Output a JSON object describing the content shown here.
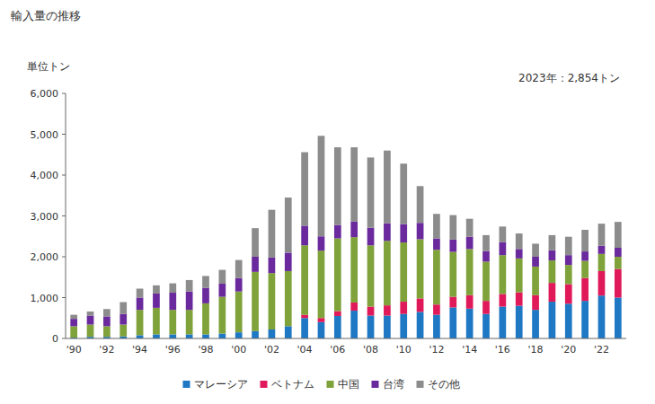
{
  "chart_data": {
    "type": "bar",
    "title": "輸入量の推移",
    "y_label": "単位トン",
    "annotation": "2023年：2,854トン",
    "stacked": true,
    "grid": false,
    "legend": "bottom",
    "categories": [
      "'90",
      null,
      "'92",
      null,
      "'94",
      null,
      "'96",
      null,
      "'98",
      null,
      "'00",
      null,
      "'02",
      null,
      "'04",
      null,
      "'06",
      null,
      "'08",
      null,
      "'10",
      null,
      "'12",
      null,
      "'14",
      null,
      "'16",
      null,
      "'18",
      null,
      "'20",
      null,
      "'22",
      null
    ],
    "ylim": [
      0,
      6000
    ],
    "yticks": [
      0,
      {
        "value": 1000,
        "label": "1,000"
      },
      {
        "value": 2000,
        "label": "2,000"
      },
      {
        "value": 3000,
        "label": "3,000"
      },
      {
        "value": 4000,
        "label": "4,000"
      },
      {
        "value": 5000,
        "label": "5,000"
      },
      {
        "value": 6000,
        "label": "6,000"
      }
    ],
    "series": [
      {
        "name": "マレーシア",
        "color": "#1f78c4",
        "values": [
          20,
          40,
          40,
          50,
          80,
          100,
          100,
          100,
          100,
          120,
          150,
          180,
          220,
          300,
          500,
          400,
          550,
          680,
          560,
          560,
          600,
          650,
          580,
          760,
          730,
          600,
          780,
          800,
          700,
          900,
          850,
          920,
          1050,
          1000
        ]
      },
      {
        "name": "ベトナム",
        "color": "#e0195a",
        "values": [
          0,
          0,
          0,
          0,
          0,
          0,
          0,
          0,
          0,
          0,
          0,
          0,
          0,
          0,
          80,
          100,
          120,
          200,
          220,
          250,
          300,
          330,
          250,
          260,
          330,
          320,
          310,
          330,
          360,
          460,
          480,
          560,
          600,
          700
        ]
      },
      {
        "name": "中国",
        "color": "#7fa23a",
        "values": [
          280,
          300,
          260,
          290,
          620,
          650,
          600,
          600,
          760,
          900,
          1000,
          1450,
          1380,
          1350,
          1700,
          1650,
          1780,
          1600,
          1500,
          1580,
          1450,
          1450,
          1340,
          1100,
          1130,
          960,
          950,
          830,
          700,
          550,
          470,
          420,
          420,
          300
        ]
      },
      {
        "name": "台湾",
        "color": "#6a2a9e",
        "values": [
          180,
          220,
          240,
          260,
          300,
          350,
          420,
          450,
          380,
          320,
          330,
          370,
          380,
          450,
          480,
          350,
          330,
          380,
          430,
          430,
          450,
          400,
          280,
          300,
          300,
          260,
          320,
          230,
          240,
          250,
          240,
          230,
          200,
          220
        ]
      },
      {
        "name": "その他",
        "color": "#8c8c8c",
        "values": [
          100,
          100,
          180,
          290,
          220,
          200,
          230,
          280,
          290,
          340,
          440,
          700,
          1170,
          1350,
          1800,
          2460,
          1900,
          1820,
          1720,
          1780,
          1480,
          900,
          600,
          600,
          440,
          390,
          380,
          380,
          320,
          370,
          450,
          530,
          540,
          634
        ]
      }
    ]
  }
}
